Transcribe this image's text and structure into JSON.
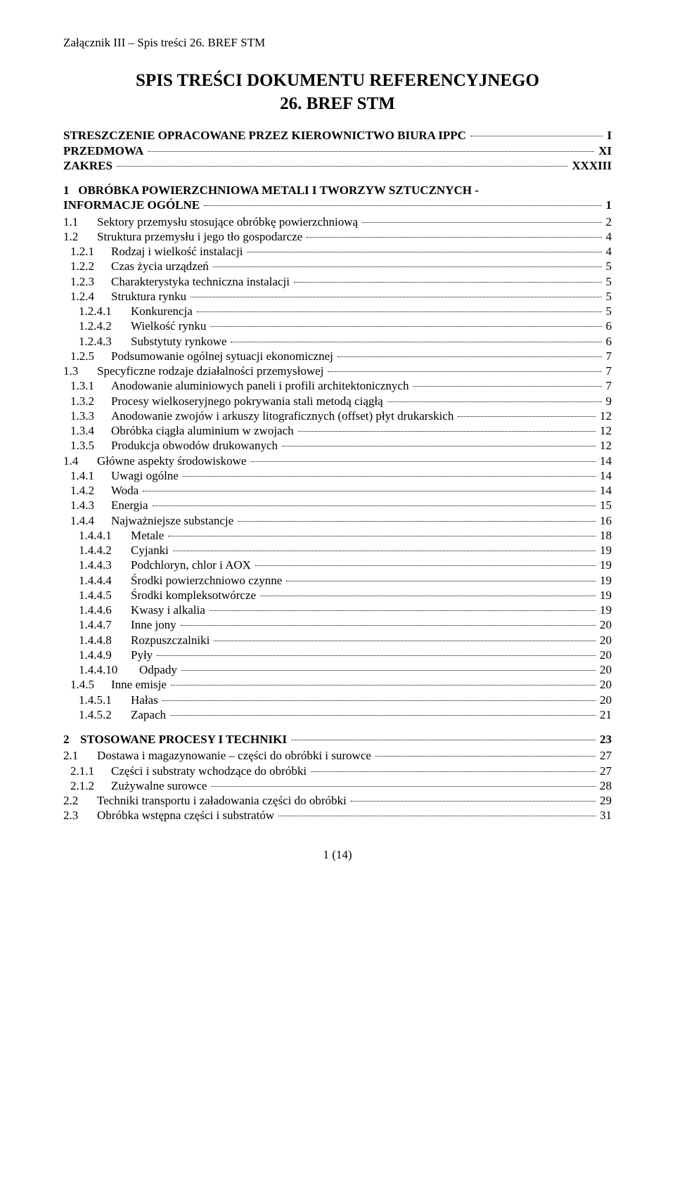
{
  "header": "Załącznik III – Spis treści 26. BREF STM",
  "title_line1": "SPIS TREŚCI DOKUMENTU REFERENCYJNEGO",
  "title_line2": "26. BREF STM",
  "pretext": [
    {
      "left": "STRESZCZENIE OPRACOWANE PRZEZ KIEROWNICTWO BIURA IPPC",
      "page": "I",
      "bold": true
    },
    {
      "left": "PRZEDMOWA",
      "page": "XI",
      "bold": true
    },
    {
      "left": "ZAKRES",
      "page": "XXXIII",
      "bold": true
    }
  ],
  "chapter1": {
    "num": "1",
    "title_line1": "OBRÓBKA POWIERZCHNIOWA METALI I TWORZYW SZTUCZNYCH -",
    "title_line2": "INFORMACJE OGÓLNE",
    "page": "1"
  },
  "entries1": [
    {
      "lvl": 1,
      "num": "1.1",
      "txt": "Sektory przemysłu stosujące obróbkę powierzchniową",
      "pg": "2"
    },
    {
      "lvl": 1,
      "num": "1.2",
      "txt": "Struktura przemysłu i jego tło gospodarcze",
      "pg": "4"
    },
    {
      "lvl": 2,
      "num": "1.2.1",
      "txt": "Rodzaj i wielkość instalacji",
      "pg": "4"
    },
    {
      "lvl": 2,
      "num": "1.2.2",
      "txt": "Czas życia urządzeń",
      "pg": "5"
    },
    {
      "lvl": 2,
      "num": "1.2.3",
      "txt": "Charakterystyka techniczna instalacji",
      "pg": "5"
    },
    {
      "lvl": 2,
      "num": "1.2.4",
      "txt": "Struktura rynku",
      "pg": "5"
    },
    {
      "lvl": 3,
      "num": "1.2.4.1",
      "txt": "Konkurencja",
      "pg": "5"
    },
    {
      "lvl": 3,
      "num": "1.2.4.2",
      "txt": "Wielkość rynku",
      "pg": "6"
    },
    {
      "lvl": 3,
      "num": "1.2.4.3",
      "txt": "Substytuty rynkowe",
      "pg": "6"
    },
    {
      "lvl": 2,
      "num": "1.2.5",
      "txt": "Podsumowanie ogólnej sytuacji ekonomicznej",
      "pg": "7"
    },
    {
      "lvl": 1,
      "num": "1.3",
      "txt": "Specyficzne rodzaje działalności przemysłowej",
      "pg": "7"
    },
    {
      "lvl": 2,
      "num": "1.3.1",
      "txt": "Anodowanie aluminiowych paneli i profili architektonicznych",
      "pg": "7"
    },
    {
      "lvl": 2,
      "num": "1.3.2",
      "txt": "Procesy wielkoseryjnego pokrywania stali metodą ciągłą",
      "pg": "9"
    },
    {
      "lvl": 2,
      "num": "1.3.3",
      "txt": "Anodowanie zwojów i arkuszy litograficznych (offset) płyt drukarskich",
      "pg": "12"
    },
    {
      "lvl": 2,
      "num": "1.3.4",
      "txt": "Obróbka ciągła aluminium w zwojach",
      "pg": "12"
    },
    {
      "lvl": 2,
      "num": "1.3.5",
      "txt": "Produkcja obwodów drukowanych",
      "pg": "12"
    },
    {
      "lvl": 1,
      "num": "1.4",
      "txt": "Główne aspekty środowiskowe",
      "pg": "14"
    },
    {
      "lvl": 2,
      "num": "1.4.1",
      "txt": "Uwagi ogólne",
      "pg": "14"
    },
    {
      "lvl": 2,
      "num": "1.4.2",
      "txt": "Woda",
      "pg": "14"
    },
    {
      "lvl": 2,
      "num": "1.4.3",
      "txt": "Energia",
      "pg": "15"
    },
    {
      "lvl": 2,
      "num": "1.4.4",
      "txt": "Najważniejsze substancje",
      "pg": "16"
    },
    {
      "lvl": 3,
      "num": "1.4.4.1",
      "txt": "Metale",
      "pg": "18"
    },
    {
      "lvl": 3,
      "num": "1.4.4.2",
      "txt": "Cyjanki",
      "pg": "19"
    },
    {
      "lvl": 3,
      "num": "1.4.4.3",
      "txt": "Podchloryn, chlor i AOX",
      "pg": "19"
    },
    {
      "lvl": 3,
      "num": "1.4.4.4",
      "txt": "Środki powierzchniowo czynne",
      "pg": "19"
    },
    {
      "lvl": 3,
      "num": "1.4.4.5",
      "txt": "Środki kompleksotwórcze",
      "pg": "19"
    },
    {
      "lvl": 3,
      "num": "1.4.4.6",
      "txt": "Kwasy i alkalia",
      "pg": "19"
    },
    {
      "lvl": 3,
      "num": "1.4.4.7",
      "txt": "Inne jony",
      "pg": "20"
    },
    {
      "lvl": 3,
      "num": "1.4.4.8",
      "txt": "Rozpuszczalniki",
      "pg": "20"
    },
    {
      "lvl": 3,
      "num": "1.4.4.9",
      "txt": "Pyły",
      "pg": "20"
    },
    {
      "lvl": 4,
      "num": "1.4.4.10",
      "txt": "Odpady",
      "pg": "20"
    },
    {
      "lvl": 2,
      "num": "1.4.5",
      "txt": "Inne emisje",
      "pg": "20"
    },
    {
      "lvl": 3,
      "num": "1.4.5.1",
      "txt": "Hałas",
      "pg": "20"
    },
    {
      "lvl": 3,
      "num": "1.4.5.2",
      "txt": "Zapach",
      "pg": "21"
    }
  ],
  "chapter2": {
    "num": "2",
    "title": "STOSOWANE PROCESY I TECHNIKI",
    "page": "23"
  },
  "entries2": [
    {
      "lvl": 1,
      "num": "2.1",
      "txt": "Dostawa i magazynowanie – części do obróbki i surowce",
      "pg": "27"
    },
    {
      "lvl": 2,
      "num": "2.1.1",
      "txt": "Części i substraty wchodzące do obróbki",
      "pg": "27"
    },
    {
      "lvl": 2,
      "num": "2.1.2",
      "txt": "Zużywalne surowce",
      "pg": "28"
    },
    {
      "lvl": 1,
      "num": "2.2",
      "txt": "Techniki transportu i załadowania części do obróbki",
      "pg": "29"
    },
    {
      "lvl": 1,
      "num": "2.3",
      "txt": "Obróbka wstępna części i substratów",
      "pg": "31"
    }
  ],
  "footer": "1 (14)"
}
